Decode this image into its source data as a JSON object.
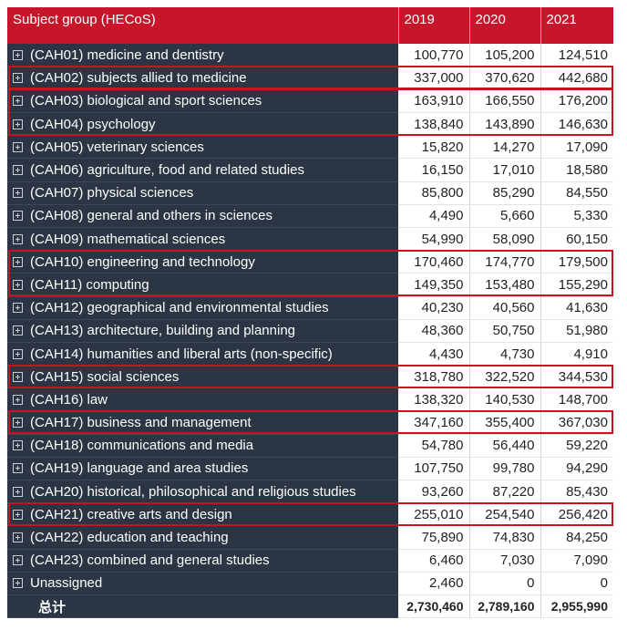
{
  "headers": {
    "subject": "Subject group (HECoS)",
    "y2019": "2019",
    "y2020": "2020",
    "y2021": "2021"
  },
  "rows": [
    {
      "subject": "(CAH01) medicine and dentistry",
      "y2019": "100,770",
      "y2020": "105,200",
      "y2021": "124,510"
    },
    {
      "subject": "(CAH02) subjects allied to medicine",
      "y2019": "337,000",
      "y2020": "370,620",
      "y2021": "442,680"
    },
    {
      "subject": "(CAH03) biological and sport sciences",
      "y2019": "163,910",
      "y2020": "166,550",
      "y2021": "176,200"
    },
    {
      "subject": "(CAH04) psychology",
      "y2019": "138,840",
      "y2020": "143,890",
      "y2021": "146,630"
    },
    {
      "subject": "(CAH05) veterinary sciences",
      "y2019": "15,820",
      "y2020": "14,270",
      "y2021": "17,090"
    },
    {
      "subject": "(CAH06) agriculture, food and related studies",
      "y2019": "16,150",
      "y2020": "17,010",
      "y2021": "18,580"
    },
    {
      "subject": "(CAH07) physical sciences",
      "y2019": "85,800",
      "y2020": "85,290",
      "y2021": "84,550"
    },
    {
      "subject": "(CAH08) general and others in sciences",
      "y2019": "4,490",
      "y2020": "5,660",
      "y2021": "5,330"
    },
    {
      "subject": "(CAH09) mathematical sciences",
      "y2019": "54,990",
      "y2020": "58,090",
      "y2021": "60,150"
    },
    {
      "subject": "(CAH10) engineering and technology",
      "y2019": "170,460",
      "y2020": "174,770",
      "y2021": "179,500"
    },
    {
      "subject": "(CAH11) computing",
      "y2019": "149,350",
      "y2020": "153,480",
      "y2021": "155,290"
    },
    {
      "subject": "(CAH12) geographical and environmental studies",
      "y2019": "40,230",
      "y2020": "40,560",
      "y2021": "41,630"
    },
    {
      "subject": "(CAH13) architecture, building and planning",
      "y2019": "48,360",
      "y2020": "50,750",
      "y2021": "51,980"
    },
    {
      "subject": "(CAH14) humanities and liberal arts (non-specific)",
      "y2019": "4,430",
      "y2020": "4,730",
      "y2021": "4,910"
    },
    {
      "subject": "(CAH15) social sciences",
      "y2019": "318,780",
      "y2020": "322,520",
      "y2021": "344,530"
    },
    {
      "subject": "(CAH16) law",
      "y2019": "138,320",
      "y2020": "140,530",
      "y2021": "148,700"
    },
    {
      "subject": "(CAH17) business and management",
      "y2019": "347,160",
      "y2020": "355,400",
      "y2021": "367,030"
    },
    {
      "subject": "(CAH18) communications and media",
      "y2019": "54,780",
      "y2020": "56,440",
      "y2021": "59,220"
    },
    {
      "subject": "(CAH19) language and area studies",
      "y2019": "107,750",
      "y2020": "99,780",
      "y2021": "94,290"
    },
    {
      "subject": "(CAH20) historical, philosophical and religious studies",
      "y2019": "93,260",
      "y2020": "87,220",
      "y2021": "85,430"
    },
    {
      "subject": "(CAH21) creative arts and design",
      "y2019": "255,010",
      "y2020": "254,540",
      "y2021": "256,420"
    },
    {
      "subject": "(CAH22) education and teaching",
      "y2019": "75,890",
      "y2020": "74,830",
      "y2021": "84,250"
    },
    {
      "subject": "(CAH23) combined and general studies",
      "y2019": "6,460",
      "y2020": "7,030",
      "y2021": "7,090"
    },
    {
      "subject": "Unassigned",
      "y2019": "2,460",
      "y2020": "0",
      "y2021": "0"
    }
  ],
  "total": {
    "label": "总计",
    "y2019": "2,730,460",
    "y2020": "2,789,160",
    "y2021": "2,955,990"
  },
  "expand_icon": "plus-box-icon",
  "colors": {
    "header": "#c7152a",
    "subject_bg": "#2b3543",
    "highlight": "#c8141e"
  }
}
